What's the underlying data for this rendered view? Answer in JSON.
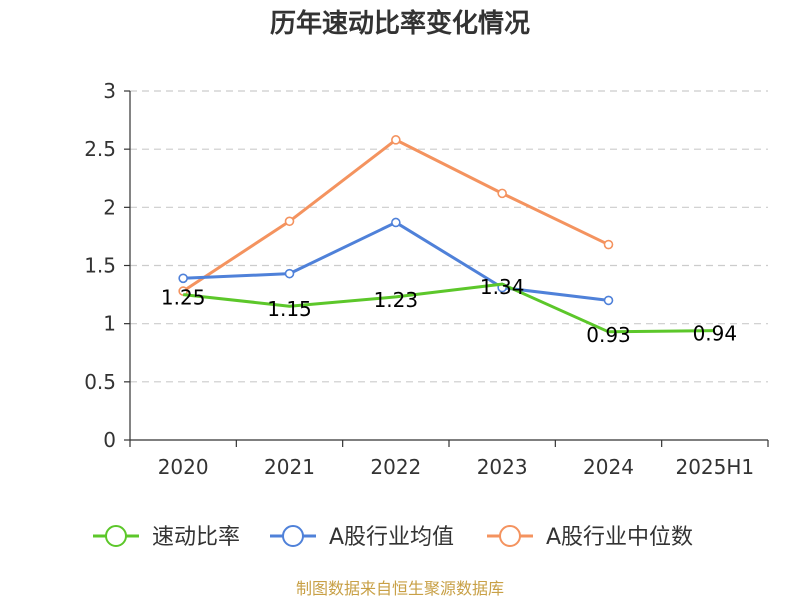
{
  "chart_data": {
    "type": "line",
    "title": "历年速动比率变化情况",
    "categories": [
      "2020",
      "2021",
      "2022",
      "2023",
      "2024",
      "2025H1"
    ],
    "ylim": [
      0,
      3
    ],
    "yticks": [
      "0",
      "0.5",
      "1",
      "1.5",
      "2",
      "2.5",
      "3"
    ],
    "grid": true,
    "legend_position": "bottom",
    "series": [
      {
        "name": "速动比率",
        "color": "#5cc72a",
        "values": [
          1.25,
          1.15,
          1.23,
          1.34,
          0.93,
          0.94
        ],
        "labels": [
          "1.25",
          "1.15",
          "1.23",
          "1.34",
          "0.93",
          "0.94"
        ]
      },
      {
        "name": "A股行业均值",
        "color": "#4f81d9",
        "values": [
          1.39,
          1.43,
          1.87,
          1.31,
          1.2,
          null
        ]
      },
      {
        "name": "A股行业中位数",
        "color": "#f4935f",
        "values": [
          1.28,
          1.88,
          2.58,
          2.12,
          1.68,
          null
        ]
      }
    ]
  },
  "source": "制图数据来自恒生聚源数据库"
}
